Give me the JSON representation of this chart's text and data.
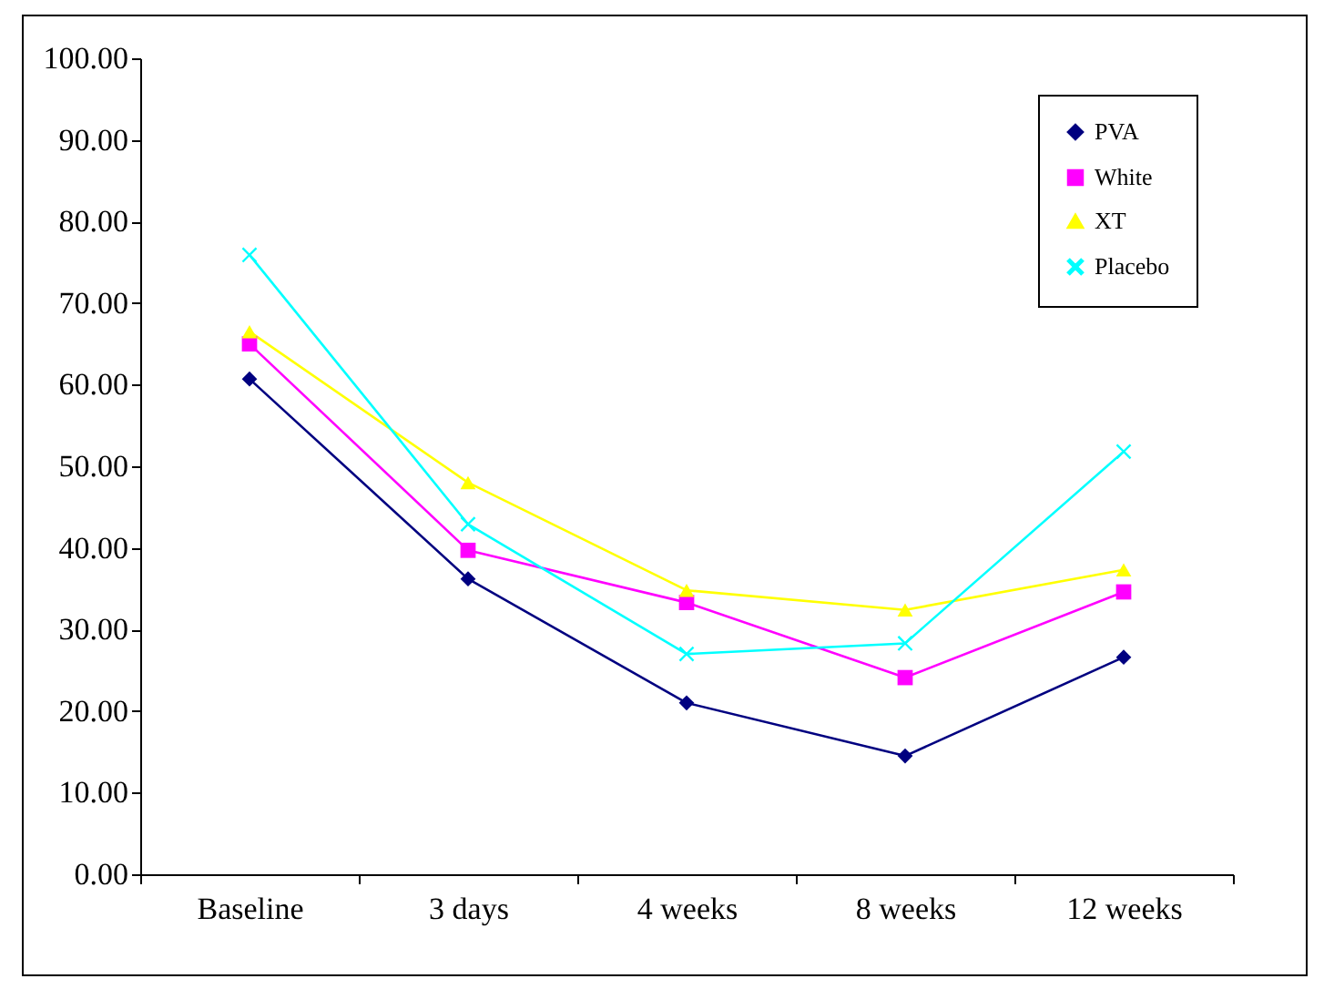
{
  "chart_data": {
    "type": "line",
    "categories": [
      "Baseline",
      "3 days",
      "4 weeks",
      "8 weeks",
      "12 weeks"
    ],
    "series": [
      {
        "name": "PVA",
        "color": "#000080",
        "marker": "diamond",
        "values": [
          60.7,
          36.2,
          21.0,
          14.5,
          26.6
        ]
      },
      {
        "name": "White",
        "color": "#ff00ff",
        "marker": "square",
        "values": [
          65.0,
          39.7,
          33.3,
          24.1,
          34.6
        ]
      },
      {
        "name": "XT",
        "color": "#ffff00",
        "marker": "triangle",
        "values": [
          66.5,
          48.0,
          34.8,
          32.4,
          37.3
        ]
      },
      {
        "name": "Placebo",
        "color": "#00ffff",
        "marker": "cross",
        "values": [
          75.9,
          42.9,
          27.0,
          28.3,
          51.8
        ]
      }
    ],
    "ylim": [
      0,
      100
    ],
    "yticks": [
      {
        "value": 0,
        "label": "0.00"
      },
      {
        "value": 10,
        "label": "10.00"
      },
      {
        "value": 20,
        "label": "20.00"
      },
      {
        "value": 30,
        "label": "30.00"
      },
      {
        "value": 40,
        "label": "40.00"
      },
      {
        "value": 50,
        "label": "50.00"
      },
      {
        "value": 60,
        "label": "60.00"
      },
      {
        "value": 70,
        "label": "70.00"
      },
      {
        "value": 80,
        "label": "80.00"
      },
      {
        "value": 90,
        "label": "90.00"
      },
      {
        "value": 100,
        "label": "100.00"
      }
    ],
    "grid": false,
    "legend": "top right",
    "line_style": "solid"
  }
}
